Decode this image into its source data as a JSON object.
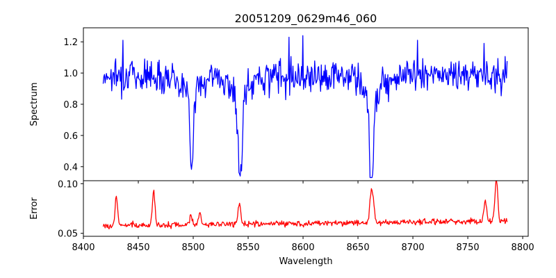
{
  "chart_data": [
    {
      "type": "line",
      "title": "20051209_0629m46_060",
      "xlabel": "",
      "ylabel": "Spectrum",
      "xlim": [
        8400,
        8805
      ],
      "ylim": [
        0.31,
        1.29
      ],
      "xticks": [
        8400,
        8450,
        8500,
        8550,
        8600,
        8650,
        8700,
        8750,
        8800
      ],
      "yticks": [
        0.4,
        0.6,
        0.8,
        1.0,
        1.2
      ],
      "ytick_labels": [
        "0.4",
        "0.6",
        "0.8",
        "1.0",
        "1.2"
      ],
      "series": [
        {
          "color": "#0000ff",
          "x_start": 8418,
          "x_end": 8786,
          "baseline": 0.985,
          "noise": 0.085,
          "absorption_lines": [
            {
              "center": 8498.5,
              "depth": 0.4,
              "width": 1.6
            },
            {
              "center": 8542.5,
              "depth": 0.53,
              "width": 2.0
            },
            {
              "center": 8662.2,
              "depth": 0.63,
              "width": 1.8
            }
          ],
          "spikes": [
            {
              "x": 8436,
              "y": 1.21
            },
            {
              "x": 8587,
              "y": 1.23
            },
            {
              "x": 8600,
              "y": 1.24
            },
            {
              "x": 8704,
              "y": 1.21
            },
            {
              "x": 8765,
              "y": 1.19
            }
          ]
        }
      ]
    },
    {
      "type": "line",
      "title": "",
      "xlabel": "Wavelength",
      "ylabel": "Error",
      "xlim": [
        8400,
        8805
      ],
      "ylim": [
        0.047,
        0.103
      ],
      "xticks": [
        8400,
        8450,
        8500,
        8550,
        8600,
        8650,
        8700,
        8750,
        8800
      ],
      "xtick_labels": [
        "8400",
        "8450",
        "8500",
        "8550",
        "8600",
        "8650",
        "8700",
        "8750",
        "8800"
      ],
      "yticks": [
        0.05,
        0.1
      ],
      "ytick_labels": [
        "0.05",
        "0.10"
      ],
      "series": [
        {
          "color": "#ff0000",
          "x_start": 8418,
          "x_end": 8786,
          "baseline": 0.0575,
          "slope_per_A": 1.4e-05,
          "noise": 0.0025,
          "peaks": [
            {
              "x": 8430,
              "y": 0.086
            },
            {
              "x": 8464,
              "y": 0.092
            },
            {
              "x": 8498,
              "y": 0.066
            },
            {
              "x": 8506,
              "y": 0.07
            },
            {
              "x": 8542,
              "y": 0.08
            },
            {
              "x": 8662,
              "y": 0.086
            },
            {
              "x": 8664,
              "y": 0.075
            },
            {
              "x": 8766,
              "y": 0.078
            },
            {
              "x": 8776,
              "y": 0.102
            }
          ]
        }
      ]
    }
  ]
}
